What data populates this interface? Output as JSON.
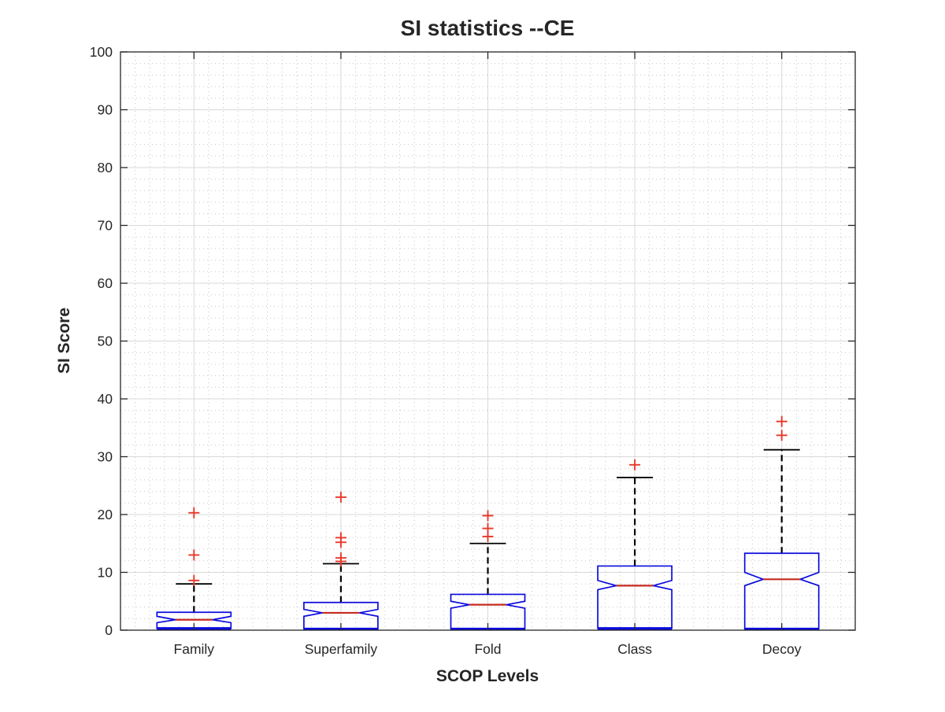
{
  "chart_data": {
    "type": "box",
    "title": "SI statistics --CE",
    "xlabel": "SCOP Levels",
    "ylabel": "SI Score",
    "ylim": [
      0,
      100
    ],
    "ytick_step": 10,
    "y_minor_step": 2,
    "x_minor_divisions_per_category": 10,
    "grid": "major solid gray, minor dotted gray, both axes",
    "legend": "none",
    "categories": [
      "Family",
      "Superfamily",
      "Fold",
      "Class",
      "Decoy"
    ],
    "series": [
      {
        "name": "Family",
        "whisker_low": 0,
        "q1": 0.3,
        "median": 1.8,
        "q3": 3.1,
        "whisker_high": 8.0,
        "notch_low": 1.3,
        "notch_high": 2.4,
        "outliers": [
          8.6,
          13.0,
          20.3
        ]
      },
      {
        "name": "Superfamily",
        "whisker_low": 0,
        "q1": 0.2,
        "median": 3.0,
        "q3": 4.8,
        "whisker_high": 11.5,
        "notch_low": 2.4,
        "notch_high": 3.6,
        "outliers": [
          11.9,
          12.5,
          15.2,
          16.0,
          23.0
        ]
      },
      {
        "name": "Fold",
        "whisker_low": 0,
        "q1": 0.2,
        "median": 4.4,
        "q3": 6.2,
        "whisker_high": 15.0,
        "notch_low": 3.8,
        "notch_high": 5.0,
        "outliers": [
          16.2,
          17.6,
          19.8
        ]
      },
      {
        "name": "Class",
        "whisker_low": 0,
        "q1": 0.3,
        "median": 7.7,
        "q3": 11.1,
        "whisker_high": 26.4,
        "notch_low": 7.0,
        "notch_high": 8.6,
        "outliers": [
          28.6
        ]
      },
      {
        "name": "Decoy",
        "whisker_low": 0,
        "q1": 0.2,
        "median": 8.8,
        "q3": 13.3,
        "whisker_high": 31.2,
        "notch_low": 7.7,
        "notch_high": 10.0,
        "outliers": [
          33.7,
          36.1
        ]
      }
    ],
    "colors": {
      "box": "#0b0bdf",
      "median": "#c52a21",
      "outlier": "#e8392b",
      "whisker": "#000000",
      "grid_major": "#d9d9d9",
      "grid_minor": "#c6c6c6",
      "axis": "#262626",
      "text": "#262626",
      "background": "#ffffff"
    }
  }
}
